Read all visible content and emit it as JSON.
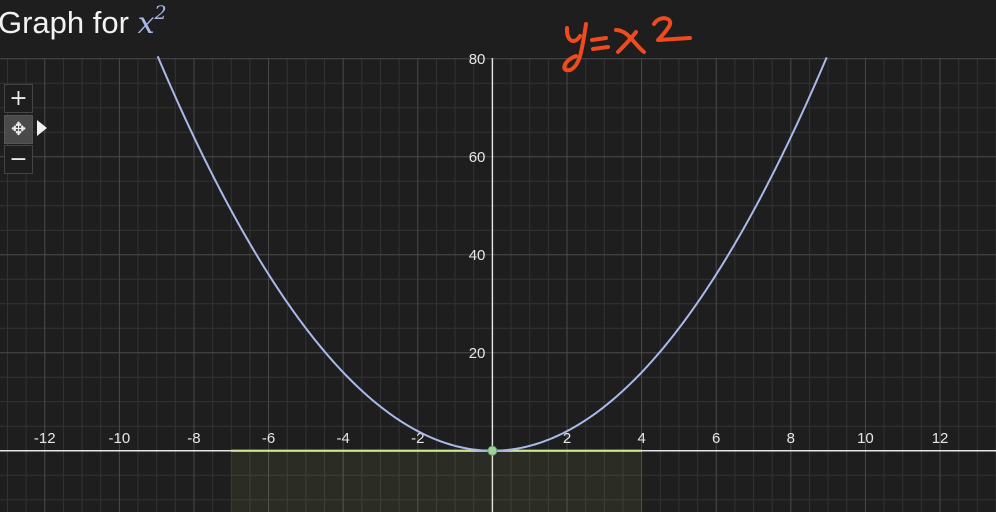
{
  "header": {
    "title_prefix": "Graph for ",
    "title_var": "x",
    "title_exp": "2"
  },
  "controls": {
    "zoom_in_label": "+",
    "pan_label": "✥",
    "zoom_out_label": "−"
  },
  "chart_data": {
    "type": "line",
    "title": "Graph for x^2",
    "xlabel": "",
    "ylabel": "",
    "xlim": [
      -13.2,
      13.5
    ],
    "ylim": [
      -12.5,
      92
    ],
    "grid": true,
    "x_ticks": [
      -12,
      -10,
      -8,
      -6,
      -4,
      -2,
      2,
      4,
      6,
      8,
      10,
      12
    ],
    "y_ticks": [
      20,
      40,
      60,
      80
    ],
    "series": [
      {
        "name": "",
        "function": "x^2",
        "x_range": [
          -13.2,
          13.5
        ],
        "color": "#a9b9ea"
      }
    ],
    "highlight_segment": {
      "x_range": [
        -7,
        4
      ],
      "y": 0,
      "color": "#c7e27a"
    },
    "points": [
      {
        "x": 0,
        "y": 0,
        "color": "#9fd19b"
      }
    ],
    "annotation": {
      "text": "y=x2",
      "color": "#f04a1f"
    }
  }
}
